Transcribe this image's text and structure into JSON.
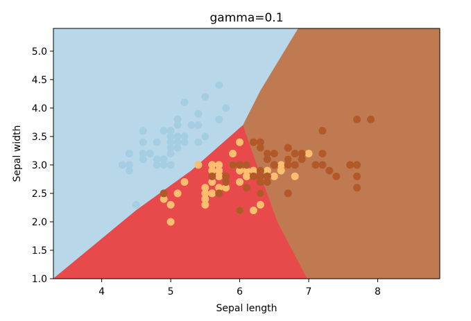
{
  "chart_data": {
    "type": "scatter",
    "title": "gamma=0.1",
    "xlabel": "Sepal length",
    "ylabel": "Sepal width",
    "xlim": [
      3.3,
      8.9
    ],
    "ylim": [
      1.0,
      5.4
    ],
    "x_ticks": [
      4,
      5,
      6,
      7,
      8
    ],
    "y_ticks": [
      1.0,
      1.5,
      2.0,
      2.5,
      3.0,
      3.5,
      4.0,
      4.5,
      5.0
    ],
    "x_tick_labels": [
      "4",
      "5",
      "6",
      "7",
      "8"
    ],
    "y_tick_labels": [
      "1.0",
      "1.5",
      "2.0",
      "2.5",
      "3.0",
      "3.5",
      "4.0",
      "4.5",
      "5.0"
    ],
    "grid": false,
    "legend": "none",
    "colors": {
      "region_class0": "#b8d8e9",
      "region_class1": "#e8494b",
      "region_class2": "#c07a52",
      "point_class0": "#a6cee3",
      "point_class1": "#fdbf6f",
      "point_class2": "#b15928"
    },
    "decision_regions": [
      {
        "class": 0,
        "polygon": [
          [
            3.3,
            1.0
          ],
          [
            3.3,
            5.4
          ],
          [
            4.65,
            5.4
          ],
          [
            6.85,
            5.4
          ],
          [
            6.3,
            4.3
          ],
          [
            6.05,
            3.7
          ],
          [
            5.3,
            2.9
          ],
          [
            4.5,
            2.2
          ],
          [
            3.8,
            1.5
          ],
          [
            3.3,
            1.0
          ]
        ]
      },
      {
        "class": 1,
        "polygon": [
          [
            3.3,
            1.0
          ],
          [
            3.8,
            1.5
          ],
          [
            4.5,
            2.2
          ],
          [
            5.3,
            2.9
          ],
          [
            6.05,
            3.7
          ],
          [
            6.25,
            3.0
          ],
          [
            6.55,
            2.0
          ],
          [
            6.98,
            1.0
          ]
        ]
      },
      {
        "class": 2,
        "polygon": [
          [
            6.05,
            3.7
          ],
          [
            6.3,
            4.3
          ],
          [
            6.85,
            5.4
          ],
          [
            8.9,
            5.4
          ],
          [
            8.9,
            1.0
          ],
          [
            6.98,
            1.0
          ],
          [
            6.55,
            2.0
          ],
          [
            6.25,
            3.0
          ]
        ]
      }
    ],
    "series": [
      {
        "class": 0,
        "points": [
          [
            5.1,
            3.5
          ],
          [
            4.9,
            3.0
          ],
          [
            4.7,
            3.2
          ],
          [
            4.6,
            3.1
          ],
          [
            5.0,
            3.6
          ],
          [
            5.4,
            3.9
          ],
          [
            4.6,
            3.4
          ],
          [
            5.0,
            3.4
          ],
          [
            4.4,
            2.9
          ],
          [
            4.9,
            3.1
          ],
          [
            5.4,
            3.7
          ],
          [
            4.8,
            3.4
          ],
          [
            4.8,
            3.0
          ],
          [
            4.3,
            3.0
          ],
          [
            5.8,
            4.0
          ],
          [
            5.7,
            4.4
          ],
          [
            5.4,
            3.9
          ],
          [
            5.1,
            3.5
          ],
          [
            5.7,
            3.8
          ],
          [
            5.1,
            3.8
          ],
          [
            5.4,
            3.4
          ],
          [
            5.1,
            3.7
          ],
          [
            4.6,
            3.6
          ],
          [
            5.1,
            3.3
          ],
          [
            4.8,
            3.4
          ],
          [
            5.0,
            3.0
          ],
          [
            5.0,
            3.4
          ],
          [
            5.2,
            3.5
          ],
          [
            5.2,
            3.4
          ],
          [
            4.7,
            3.2
          ],
          [
            4.8,
            3.1
          ],
          [
            5.4,
            3.4
          ],
          [
            5.2,
            4.1
          ],
          [
            5.5,
            4.2
          ],
          [
            4.9,
            3.1
          ],
          [
            5.0,
            3.2
          ],
          [
            5.5,
            3.5
          ],
          [
            4.9,
            3.6
          ],
          [
            4.4,
            3.0
          ],
          [
            5.1,
            3.4
          ],
          [
            5.0,
            3.5
          ],
          [
            4.5,
            2.3
          ],
          [
            4.4,
            3.2
          ],
          [
            5.0,
            3.5
          ],
          [
            5.1,
            3.8
          ],
          [
            4.8,
            3.0
          ],
          [
            5.1,
            3.8
          ],
          [
            4.6,
            3.2
          ],
          [
            5.3,
            3.7
          ],
          [
            5.0,
            3.3
          ]
        ]
      },
      {
        "class": 1,
        "points": [
          [
            7.0,
            3.2
          ],
          [
            6.4,
            3.2
          ],
          [
            6.9,
            3.1
          ],
          [
            5.5,
            2.3
          ],
          [
            6.5,
            2.8
          ],
          [
            5.7,
            2.8
          ],
          [
            6.3,
            3.3
          ],
          [
            4.9,
            2.4
          ],
          [
            6.6,
            2.9
          ],
          [
            5.2,
            2.7
          ],
          [
            5.0,
            2.0
          ],
          [
            5.9,
            3.0
          ],
          [
            6.0,
            2.2
          ],
          [
            6.1,
            2.9
          ],
          [
            5.6,
            2.9
          ],
          [
            6.7,
            3.1
          ],
          [
            5.6,
            3.0
          ],
          [
            5.8,
            2.7
          ],
          [
            6.2,
            2.2
          ],
          [
            5.6,
            2.5
          ],
          [
            5.9,
            3.2
          ],
          [
            6.1,
            2.8
          ],
          [
            6.3,
            2.5
          ],
          [
            6.1,
            2.8
          ],
          [
            6.4,
            2.9
          ],
          [
            6.6,
            3.0
          ],
          [
            6.8,
            2.8
          ],
          [
            6.7,
            3.0
          ],
          [
            6.0,
            2.9
          ],
          [
            5.7,
            2.6
          ],
          [
            5.5,
            2.4
          ],
          [
            5.5,
            2.4
          ],
          [
            5.8,
            2.7
          ],
          [
            6.0,
            2.7
          ],
          [
            5.4,
            3.0
          ],
          [
            6.0,
            3.4
          ],
          [
            6.7,
            3.1
          ],
          [
            6.3,
            2.3
          ],
          [
            5.6,
            3.0
          ],
          [
            5.5,
            2.5
          ],
          [
            5.5,
            2.6
          ],
          [
            6.1,
            3.0
          ],
          [
            5.8,
            2.6
          ],
          [
            5.0,
            2.3
          ],
          [
            5.6,
            2.7
          ],
          [
            5.7,
            3.0
          ],
          [
            5.7,
            2.9
          ],
          [
            6.2,
            2.9
          ],
          [
            5.1,
            2.5
          ],
          [
            5.7,
            2.8
          ]
        ]
      },
      {
        "class": 2,
        "points": [
          [
            6.3,
            3.3
          ],
          [
            5.8,
            2.7
          ],
          [
            7.1,
            3.0
          ],
          [
            6.3,
            2.9
          ],
          [
            6.5,
            3.0
          ],
          [
            7.6,
            3.0
          ],
          [
            4.9,
            2.5
          ],
          [
            7.3,
            2.9
          ],
          [
            6.7,
            2.5
          ],
          [
            7.2,
            3.6
          ],
          [
            6.5,
            3.2
          ],
          [
            6.4,
            2.7
          ],
          [
            6.8,
            3.0
          ],
          [
            5.7,
            2.5
          ],
          [
            5.8,
            2.8
          ],
          [
            6.4,
            3.2
          ],
          [
            6.5,
            3.0
          ],
          [
            7.7,
            3.8
          ],
          [
            7.7,
            2.6
          ],
          [
            6.0,
            2.2
          ],
          [
            6.9,
            3.2
          ],
          [
            5.6,
            2.8
          ],
          [
            7.7,
            2.8
          ],
          [
            6.3,
            2.7
          ],
          [
            6.7,
            3.3
          ],
          [
            7.2,
            3.2
          ],
          [
            6.2,
            2.8
          ],
          [
            6.1,
            3.0
          ],
          [
            6.4,
            2.8
          ],
          [
            7.2,
            3.0
          ],
          [
            7.4,
            2.8
          ],
          [
            7.9,
            3.8
          ],
          [
            6.4,
            2.8
          ],
          [
            6.3,
            2.8
          ],
          [
            6.1,
            2.6
          ],
          [
            7.7,
            3.0
          ],
          [
            6.3,
            3.4
          ],
          [
            6.4,
            3.1
          ],
          [
            6.0,
            3.0
          ],
          [
            6.9,
            3.1
          ],
          [
            6.7,
            3.1
          ],
          [
            6.9,
            3.1
          ],
          [
            5.8,
            2.7
          ],
          [
            6.8,
            3.2
          ],
          [
            6.7,
            3.3
          ],
          [
            6.7,
            3.0
          ],
          [
            6.3,
            2.5
          ],
          [
            6.5,
            3.0
          ],
          [
            6.2,
            3.4
          ],
          [
            5.9,
            3.0
          ]
        ]
      }
    ]
  }
}
